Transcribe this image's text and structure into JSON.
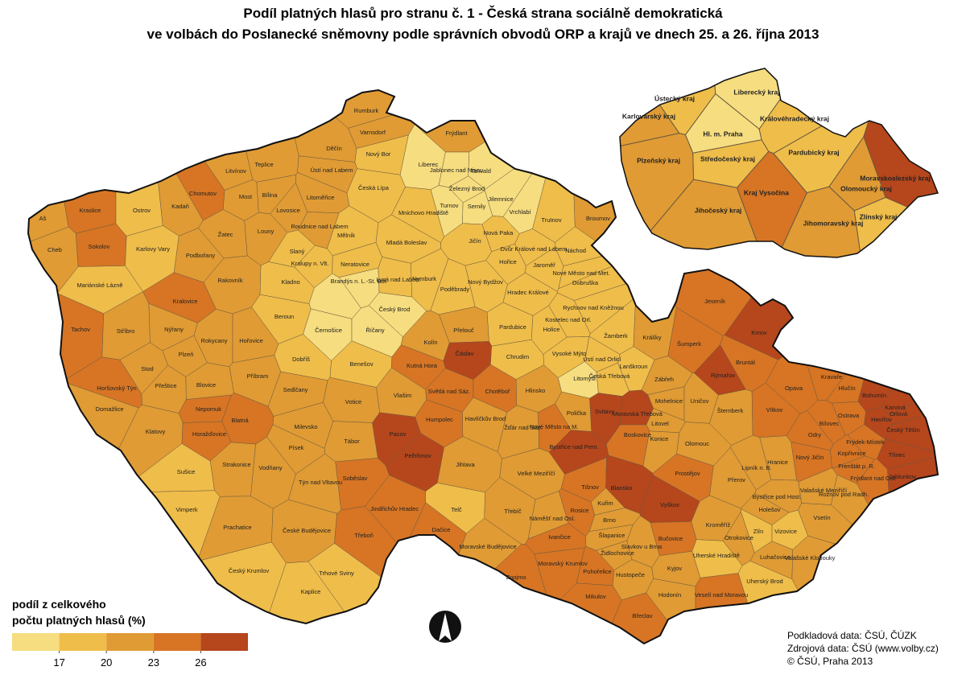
{
  "title": [
    "Podíl platných hlasů pro stranu č. 1 - Česká strana sociálně demokratická",
    "ve volbách do Poslanecké sněmovny podle správních obvodů ORP a krajů ve dnech 25. a 26. října 2013"
  ],
  "legend": {
    "title": [
      "podíl z celkového",
      "počtu platných hlasů (%)"
    ],
    "breaks": [
      17,
      20,
      23,
      26
    ],
    "colors": [
      "#f6dd7f",
      "#efbd4a",
      "#e09b34",
      "#d77524",
      "#b6461c"
    ]
  },
  "orp": [
    {
      "name": "Rumburk",
      "value": 21.5
    },
    {
      "name": "Varnsdorf",
      "value": 21.5
    },
    {
      "name": "Frýdlant",
      "value": 21.5
    },
    {
      "name": "Děčín",
      "value": 21.5
    },
    {
      "name": "Nový Bor",
      "value": 18.5
    },
    {
      "name": "Liberec",
      "value": 15.5
    },
    {
      "name": "Jablonec nad Nisou",
      "value": 15.5
    },
    {
      "name": "Tanvald",
      "value": 15.5
    },
    {
      "name": "Železný Brod",
      "value": 15.5
    },
    {
      "name": "Jilemnice",
      "value": 15.5
    },
    {
      "name": "Vrchlabí",
      "value": 15.5
    },
    {
      "name": "Teplice",
      "value": 21.5
    },
    {
      "name": "Ústí nad Labem",
      "value": 21.5
    },
    {
      "name": "Litvínov",
      "value": 21.5
    },
    {
      "name": "Chomutov",
      "value": 24.5
    },
    {
      "name": "Most",
      "value": 21.5
    },
    {
      "name": "Bílina",
      "value": 21.5
    },
    {
      "name": "Litoměřice",
      "value": 21.5
    },
    {
      "name": "Česká Lípa",
      "value": 18.5
    },
    {
      "name": "Turnov",
      "value": 15.5
    },
    {
      "name": "Semily",
      "value": 15.5
    },
    {
      "name": "Kraslice",
      "value": 24.5
    },
    {
      "name": "Ostrov",
      "value": 18.5
    },
    {
      "name": "Kadaň",
      "value": 21.5
    },
    {
      "name": "Lovosice",
      "value": 21.5
    },
    {
      "name": "Roudnice nad Labem",
      "value": 21.5
    },
    {
      "name": "Mnichovo Hradiště",
      "value": 18.5
    },
    {
      "name": "Trutnov",
      "value": 18.5
    },
    {
      "name": "Broumov",
      "value": 21.5
    },
    {
      "name": "Aš",
      "value": 21.5
    },
    {
      "name": "Sokolov",
      "value": 24.5
    },
    {
      "name": "Karlovy Vary",
      "value": 18.5
    },
    {
      "name": "Žatec",
      "value": 21.5
    },
    {
      "name": "Louny",
      "value": 21.5
    },
    {
      "name": "Mělník",
      "value": 18.5
    },
    {
      "name": "Mladá Boleslav",
      "value": 18.5
    },
    {
      "name": "Jičín",
      "value": 18.5
    },
    {
      "name": "Nová Paka",
      "value": 18.5
    },
    {
      "name": "Dvůr Králové nad Labem",
      "value": 18.5
    },
    {
      "name": "Náchod",
      "value": 18.5
    },
    {
      "name": "Cheb",
      "value": 21.5
    },
    {
      "name": "Podbořany",
      "value": 21.5
    },
    {
      "name": "Slaný",
      "value": 18.5
    },
    {
      "name": "Kralupy n. Vlt.",
      "value": 18.5
    },
    {
      "name": "Neratovice",
      "value": 18.5
    },
    {
      "name": "Hořice",
      "value": 18.5
    },
    {
      "name": "Jaroměř",
      "value": 18.5
    },
    {
      "name": "Nové Město nad Met.",
      "value": 18.5
    },
    {
      "name": "Mariánské Lázně",
      "value": 18.5
    },
    {
      "name": "Rakovník",
      "value": 21.5
    },
    {
      "name": "Kladno",
      "value": 18.5
    },
    {
      "name": "Brandýs n. L.-St. Bol.",
      "value": 15.5
    },
    {
      "name": "Lysá nad Labem",
      "value": 18.5
    },
    {
      "name": "Nymburk",
      "value": 18.5
    },
    {
      "name": "Poděbrady",
      "value": 18.5
    },
    {
      "name": "Nový Bydžov",
      "value": 18.5
    },
    {
      "name": "Hradec Králové",
      "value": 18.5
    },
    {
      "name": "Dobruška",
      "value": 18.5
    },
    {
      "name": "Rychnov nad Kněžnou",
      "value": 18.5
    },
    {
      "name": "Kralovice",
      "value": 24.5
    },
    {
      "name": null,
      "value": 15.5
    },
    {
      "name": "Český Brod",
      "value": 15.5
    },
    {
      "name": "Kostelec nad Orl.",
      "value": 18.5
    },
    {
      "name": "Tachov",
      "value": 24.5
    },
    {
      "name": "Stříbro",
      "value": 21.5
    },
    {
      "name": "Nýřany",
      "value": 21.5
    },
    {
      "name": "Beroun",
      "value": 18.5
    },
    {
      "name": "Černošice",
      "value": 15.5
    },
    {
      "name": "Říčany",
      "value": 15.5
    },
    {
      "name": "Kolín",
      "value": 21.5
    },
    {
      "name": "Přelouč",
      "value": 21.5
    },
    {
      "name": "Pardubice",
      "value": 18.5
    },
    {
      "name": "Holice",
      "value": 18.5
    },
    {
      "name": "Žamberk",
      "value": 18.5
    },
    {
      "name": "Králíky",
      "value": 21.5
    },
    {
      "name": "Rokycany",
      "value": 21.5
    },
    {
      "name": "Hořovice",
      "value": 21.5
    },
    {
      "name": "Čáslav",
      "value": 27.5
    },
    {
      "name": "Vysoké Mýto",
      "value": 18.5
    },
    {
      "name": "Ústí nad Orlicí",
      "value": 18.5
    },
    {
      "name": "Jeseník",
      "value": 24.5
    },
    {
      "name": "Krnov",
      "value": 27.5
    },
    {
      "name": "Šumperk",
      "value": 24.5
    },
    {
      "name": "Plzeň",
      "value": 21.5
    },
    {
      "name": "Dobříš",
      "value": 18.5
    },
    {
      "name": "Benešov",
      "value": 18.5
    },
    {
      "name": "Kutná Hora",
      "value": 24.5
    },
    {
      "name": "Chrudim",
      "value": 18.5
    },
    {
      "name": "Česká Třebová",
      "value": 18.5
    },
    {
      "name": "Lanškroun",
      "value": 18.5
    },
    {
      "name": "Rýmařov",
      "value": 27.5
    },
    {
      "name": "Bruntál",
      "value": 24.5
    },
    {
      "name": "Stod",
      "value": 21.5
    },
    {
      "name": "Příbram",
      "value": 21.5
    },
    {
      "name": "Světlá nad Sáz.",
      "value": 24.5
    },
    {
      "name": "Chotěboř",
      "value": 24.5
    },
    {
      "name": "Hlinsko",
      "value": 21.5
    },
    {
      "name": "Litomyšl",
      "value": 15.5
    },
    {
      "name": "Zábřeh",
      "value": 21.5
    },
    {
      "name": "Horšovský Týn",
      "value": 24.5
    },
    {
      "name": "Blovice",
      "value": 21.5
    },
    {
      "name": "Sedlčany",
      "value": 21.5
    },
    {
      "name": "Votice",
      "value": 21.5
    },
    {
      "name": "Vlašim",
      "value": 21.5
    },
    {
      "name": "Přeštice",
      "value": 21.5
    },
    {
      "name": "Havlíčkův Brod",
      "value": 21.5
    },
    {
      "name": "Polička",
      "value": 21.5
    },
    {
      "name": "Svitavy",
      "value": 27.5
    },
    {
      "name": "Moravská Třebová",
      "value": 27.5
    },
    {
      "name": "Mohelnice",
      "value": 21.5
    },
    {
      "name": "Uničov",
      "value": 21.5
    },
    {
      "name": "Opava",
      "value": 24.5
    },
    {
      "name": "Hlučín",
      "value": 24.5
    },
    {
      "name": "Kravaře",
      "value": 24.5
    },
    {
      "name": "Bohumín",
      "value": 27.5
    },
    {
      "name": "Karviná",
      "value": 27.5
    },
    {
      "name": "Domažlice",
      "value": 21.5
    },
    {
      "name": "Nepomuk",
      "value": 24.5
    },
    {
      "name": "Milevsko",
      "value": 21.5
    },
    {
      "name": "Humpolec",
      "value": 24.5
    },
    {
      "name": "Žďár nad Sáz.",
      "value": 21.5
    },
    {
      "name": "Nové Město na M.",
      "value": 24.5
    },
    {
      "name": "Šternberk",
      "value": 21.5
    },
    {
      "name": "Vítkov",
      "value": 24.5
    },
    {
      "name": "Bílovec",
      "value": 24.5
    },
    {
      "name": "Ostrava",
      "value": 24.5
    },
    {
      "name": "Havířov",
      "value": 27.5
    },
    {
      "name": "Orlová",
      "value": 27.5
    },
    {
      "name": "Český Těšín",
      "value": 27.5
    },
    {
      "name": "Litovel",
      "value": 21.5
    },
    {
      "name": "Klatovy",
      "value": 21.5
    },
    {
      "name": "Blatná",
      "value": 24.5
    },
    {
      "name": "Horažďovice",
      "value": 24.5
    },
    {
      "name": "Tábor",
      "value": 21.5
    },
    {
      "name": "Pacov",
      "value": 27.5
    },
    {
      "name": "Boskovice",
      "value": 24.5
    },
    {
      "name": "Bystřice nad Pern.",
      "value": 27.5
    },
    {
      "name": "Konice",
      "value": 21.5
    },
    {
      "name": "Olomouc",
      "value": 21.5
    },
    {
      "name": "Odry",
      "value": 24.5
    },
    {
      "name": "Frýdek-Místek",
      "value": 24.5
    },
    {
      "name": "Kopřivnice",
      "value": 24.5
    },
    {
      "name": "Nový Jičín",
      "value": 24.5
    },
    {
      "name": "Třinec",
      "value": 27.5
    },
    {
      "name": "Písek",
      "value": 21.5
    },
    {
      "name": "Strakonice",
      "value": 21.5
    },
    {
      "name": "Pelhřimov",
      "value": 27.5
    },
    {
      "name": "Jihlava",
      "value": 21.5
    },
    {
      "name": "Velké Meziříčí",
      "value": 21.5
    },
    {
      "name": "Prostějov",
      "value": 24.5
    },
    {
      "name": "Hranice",
      "value": 21.5
    },
    {
      "name": "Lipník n. B.",
      "value": 21.5
    },
    {
      "name": "Přerov",
      "value": 21.5
    },
    {
      "name": "Frenštát p. R.",
      "value": 24.5
    },
    {
      "name": "Frýdlant nad Ost.",
      "value": 24.5
    },
    {
      "name": "Jablunkov",
      "value": 27.5
    },
    {
      "name": "Sušice",
      "value": 18.5
    },
    {
      "name": "Vodňany",
      "value": 21.5
    },
    {
      "name": "Týn nad Vltavou",
      "value": 21.5
    },
    {
      "name": "Soběslav",
      "value": 24.5
    },
    {
      "name": "Tišnov",
      "value": 24.5
    },
    {
      "name": "Blansko",
      "value": 27.5
    },
    {
      "name": "Vyškov",
      "value": 27.5
    },
    {
      "name": "Valašské Meziříčí",
      "value": 21.5
    },
    {
      "name": "Rožnov pod Radh.",
      "value": 21.5
    },
    {
      "name": "Bystřice pod Host.",
      "value": 21.5
    },
    {
      "name": "Holešov",
      "value": 21.5
    },
    {
      "name": "Kroměříž",
      "value": 21.5
    },
    {
      "name": "Zlín",
      "value": 18.5
    },
    {
      "name": "Otrokovice",
      "value": 21.5
    },
    {
      "name": "Vizovice",
      "value": 18.5
    },
    {
      "name": "Vsetín",
      "value": 21.5
    },
    {
      "name": "Jindřichův Hradec",
      "value": 24.5
    },
    {
      "name": "Telč",
      "value": 18.5
    },
    {
      "name": "Třebíč",
      "value": 21.5
    },
    {
      "name": "Náměšť nad Osl.",
      "value": 21.5
    },
    {
      "name": "Rosice",
      "value": 24.5
    },
    {
      "name": "Brno",
      "value": 21.5
    },
    {
      "name": "Šlapanice",
      "value": 21.5
    },
    {
      "name": "Kuřim",
      "value": 21.5
    },
    {
      "name": "Vimperk",
      "value": 18.5
    },
    {
      "name": "Prachatice",
      "value": 21.5
    },
    {
      "name": "České Budějovice",
      "value": 21.5
    },
    {
      "name": "Třeboň",
      "value": 24.5
    },
    {
      "name": "Dačice",
      "value": 24.5
    },
    {
      "name": "Moravské Budějovice",
      "value": 21.5
    },
    {
      "name": "Ivančice",
      "value": 24.5
    },
    {
      "name": "Židlochovice",
      "value": 21.5
    },
    {
      "name": "Slavkov u Brna",
      "value": 21.5
    },
    {
      "name": "Bučovice",
      "value": 24.5
    },
    {
      "name": "Uherské Hradiště",
      "value": 18.5
    },
    {
      "name": "Luhačovice",
      "value": 21.5
    },
    {
      "name": "Valašské Klobouky",
      "value": 21.5
    },
    {
      "name": "Moravský Krumlov",
      "value": 24.5
    },
    {
      "name": "Pohořelice",
      "value": 24.5
    },
    {
      "name": "Hustopeče",
      "value": 21.5
    },
    {
      "name": "Kyjov",
      "value": 21.5
    },
    {
      "name": "Uherský Brod",
      "value": 18.5
    },
    {
      "name": "Znojmo",
      "value": 24.5
    },
    {
      "name": "Český Krumlov",
      "value": 18.5
    },
    {
      "name": "Trhové Sviny",
      "value": 18.5
    },
    {
      "name": "Kaplice",
      "value": 18.5
    },
    {
      "name": "Mikulov",
      "value": 24.5
    },
    {
      "name": "Hodonín",
      "value": 21.5
    },
    {
      "name": "Veselí nad Moravou",
      "value": 24.5
    },
    {
      "name": "Břeclav",
      "value": 24.5
    }
  ],
  "kraje": [
    {
      "name": "Ústecký kraj",
      "value": 18.5
    },
    {
      "name": "Liberecký kraj",
      "value": 15.5
    },
    {
      "name": "Karlovarský kraj",
      "value": 21.5
    },
    {
      "name": "Královéhradecký kraj",
      "value": 18.5
    },
    {
      "name": "Hl. m. Praha",
      "value": 15.5
    },
    {
      "name": "Pardubický kraj",
      "value": 18.5
    },
    {
      "name": "Plzeňský kraj",
      "value": 21.5
    },
    {
      "name": "Středočeský kraj",
      "value": 18.5
    },
    {
      "name": "Moravskoslezský kraj",
      "value": 27.5
    },
    {
      "name": "Kraj Vysočina",
      "value": 24.5
    },
    {
      "name": "Olomoucký kraj",
      "value": 21.5
    },
    {
      "name": "Jihočeský kraj",
      "value": 21.5
    },
    {
      "name": "Jihomoravský kraj",
      "value": 21.5
    },
    {
      "name": "Zlínský kraj",
      "value": 18.5
    }
  ],
  "sources": [
    "Podkladová data: ČSÚ, ČÚZK",
    "Zdrojová data: ČSÚ (www.volby.cz)",
    "© ČSÚ, Praha 2013"
  ]
}
